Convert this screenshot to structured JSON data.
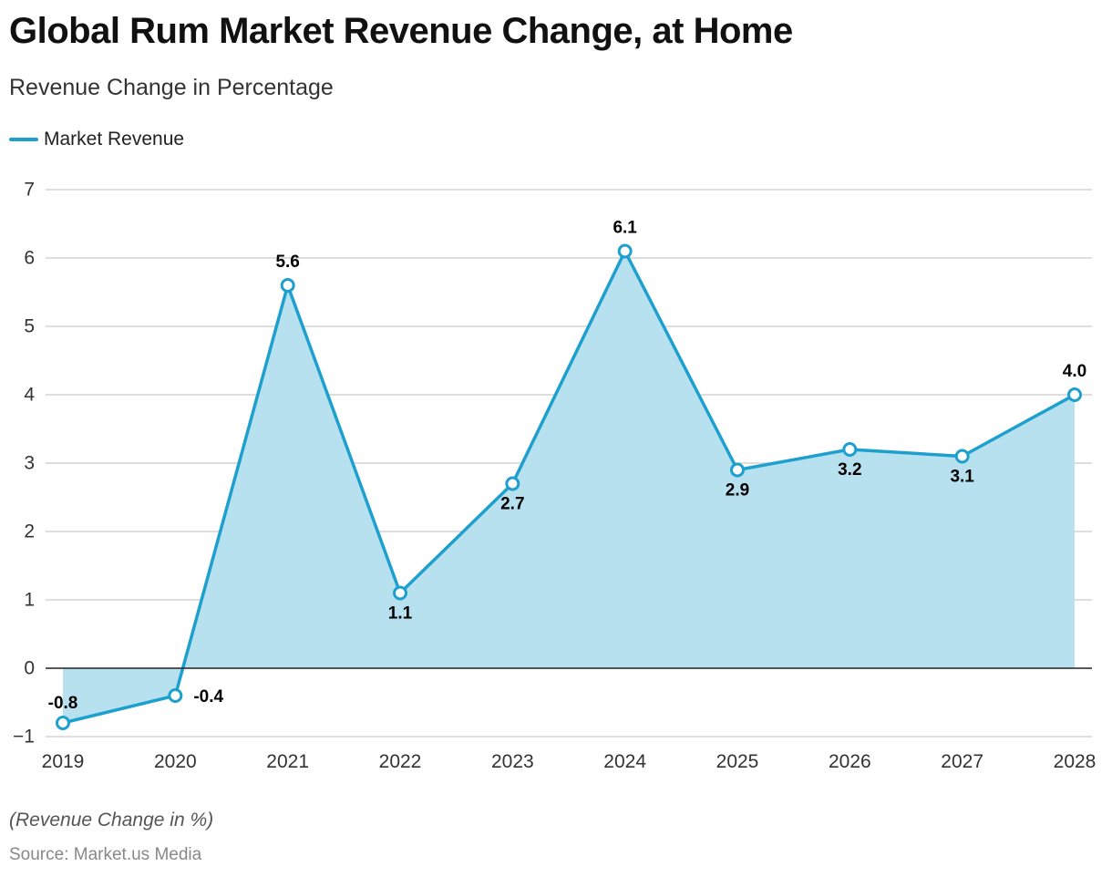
{
  "header": {
    "title": "Global Rum Market Revenue Change, at Home",
    "subtitle": "Revenue Change in Percentage"
  },
  "footer": {
    "note": "(Revenue Change in %)",
    "source": "Source: Market.us Media"
  },
  "colors": {
    "line": "#1ea0cf",
    "area": "#b8e1f0",
    "grid": "#d4d4d4",
    "zero_line": "#222222",
    "label": "#000000",
    "tick": "#333333"
  },
  "chart_data": {
    "type": "area",
    "title": "Global Rum Market Revenue Change, at Home",
    "subtitle": "Revenue Change in Percentage",
    "xlabel": "",
    "ylabel": "(Revenue Change in %)",
    "categories": [
      "2019",
      "2020",
      "2021",
      "2022",
      "2023",
      "2024",
      "2025",
      "2026",
      "2027",
      "2028"
    ],
    "series": [
      {
        "name": "Market Revenue",
        "values": [
          -0.8,
          -0.4,
          5.6,
          1.1,
          2.7,
          6.1,
          2.9,
          3.2,
          3.1,
          4.0
        ],
        "labels": [
          "-0.8",
          "-0.4",
          "5.6",
          "1.1",
          "2.7",
          "6.1",
          "2.9",
          "3.2",
          "3.1",
          "4.0"
        ],
        "label_positions": [
          "above",
          "right",
          "above",
          "below",
          "below",
          "above",
          "below",
          "below",
          "below",
          "above"
        ]
      }
    ],
    "ylim": [
      -1,
      7
    ],
    "yticks": [
      7,
      6,
      5,
      4,
      3,
      2,
      1,
      0,
      -1
    ],
    "ytick_labels": [
      "7",
      "6",
      "5",
      "4",
      "3",
      "2",
      "1",
      "0",
      "−1"
    ],
    "grid": true,
    "legend": "top-left"
  }
}
